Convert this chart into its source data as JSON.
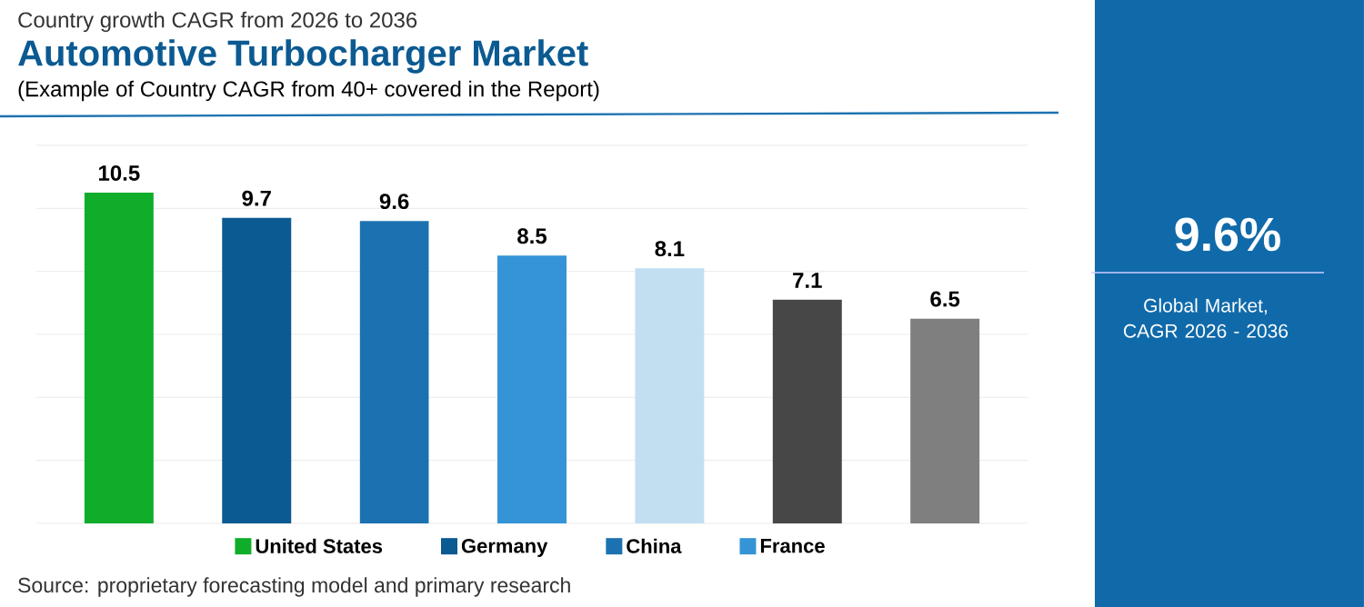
{
  "chart_data": [
    {
      "type": "bar",
      "title": "Automotive Turbocharger Market",
      "subtitle": "(Example of Country CAGR from 40+ covered in the Report)",
      "annotations": [
        "Country growth CAGR from 2026 to 2036",
        "Source: proprietary forecasting model and primary research"
      ],
      "categories": [
        null,
        null,
        null,
        null,
        null,
        null,
        null
      ],
      "stacked": true,
      "series": [
        {
          "name": "United States",
          "color": "#10ad2b",
          "values": [
            10.5,
            null,
            null,
            null,
            null,
            null,
            null
          ]
        },
        {
          "name": "Germany",
          "color": "#0b5a92",
          "values": [
            null,
            9.7,
            null,
            null,
            null,
            null,
            null
          ]
        },
        {
          "name": "China",
          "color": "#1c72b0",
          "values": [
            null,
            null,
            9.6,
            null,
            null,
            null,
            null
          ]
        },
        {
          "name": "France",
          "color": "#3494d6",
          "values": [
            null,
            null,
            null,
            8.5,
            null,
            null,
            null
          ]
        },
        {
          "color": "#c2dff2",
          "values": [
            null,
            null,
            null,
            null,
            8.1,
            null,
            null
          ]
        },
        {
          "color": "#474747",
          "values": [
            null,
            null,
            null,
            null,
            null,
            7.1,
            null
          ]
        },
        {
          "color": "#7f7f7f",
          "values": [
            null,
            null,
            null,
            null,
            null,
            null,
            6.5
          ]
        }
      ],
      "ylim": [
        0,
        12
      ],
      "yticks": [
        {
          "value": 0,
          "label": null
        },
        {
          "value": 2,
          "label": null
        },
        {
          "value": 4,
          "label": null
        },
        {
          "value": 6,
          "label": null
        },
        {
          "value": 8,
          "label": null
        },
        {
          "value": 10,
          "label": null
        },
        {
          "value": 12,
          "label": null
        }
      ],
      "grid": "y",
      "tick_labels": false,
      "legend": "bottom",
      "data_labels": true
    },
    {
      "type": "other",
      "title": "9.6%",
      "subtitle": "Global Market, CAGR 2026 - 2036"
    }
  ]
}
